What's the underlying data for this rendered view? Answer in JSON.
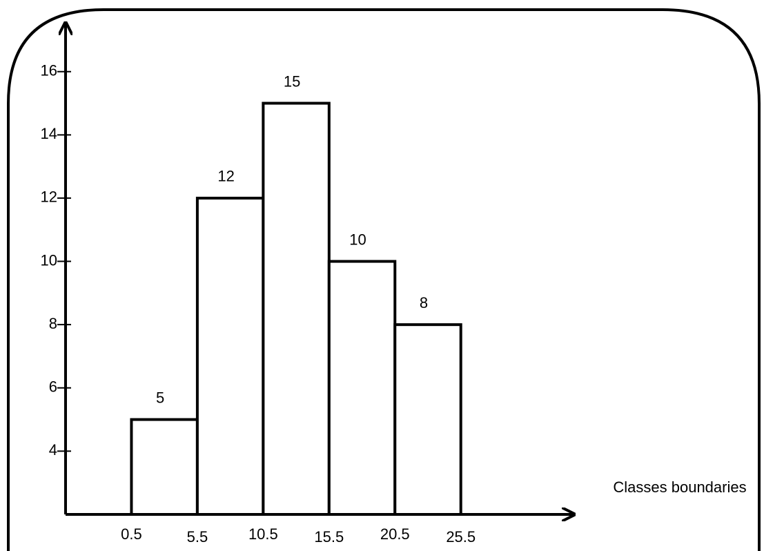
{
  "chart_data": {
    "type": "histogram",
    "bins": [
      0.5,
      5.5,
      10.5,
      15.5,
      20.5,
      25.5
    ],
    "values": [
      5,
      12,
      15,
      10,
      8
    ],
    "color": "#ffffff",
    "edge_color": "#000000",
    "xlabel": "Classes boundaries",
    "xlim": [
      -4.5,
      34
    ],
    "ylim": [
      2,
      17.5
    ],
    "yticks": [
      4,
      6,
      8,
      10,
      12,
      14,
      16
    ]
  }
}
